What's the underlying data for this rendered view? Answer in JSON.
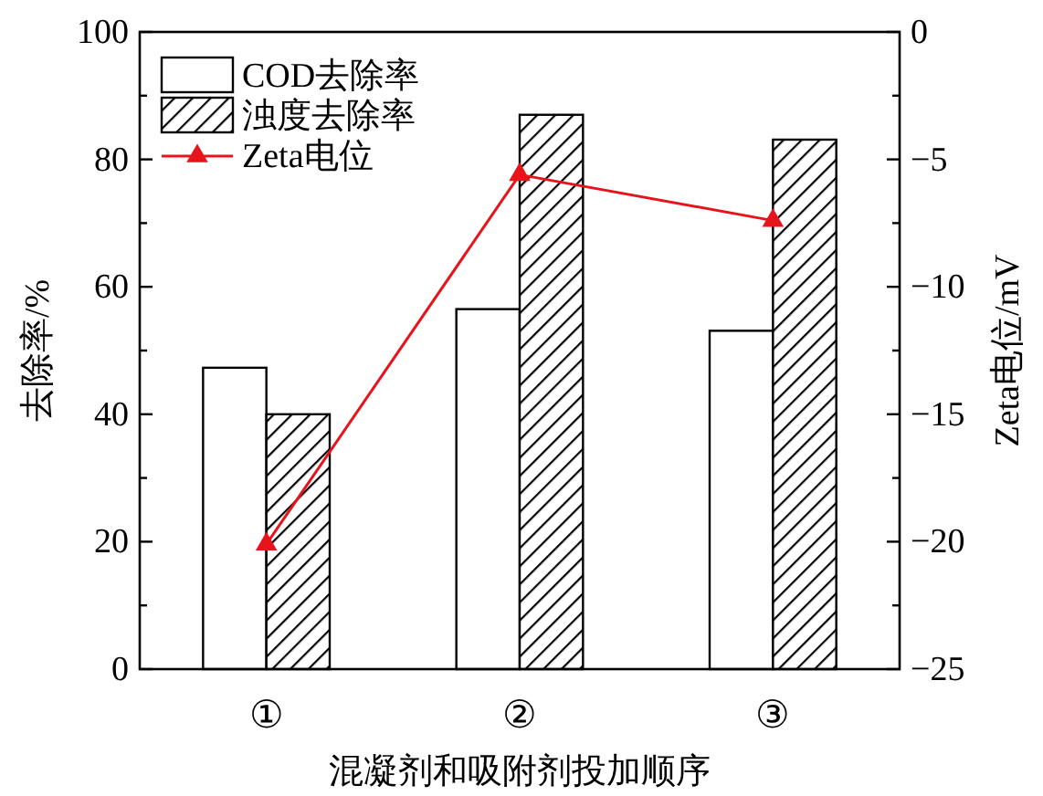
{
  "chart_data": {
    "type": "bar",
    "xlabel": "混凝剂和吸附剂投加顺序",
    "ylabel": "去除率/%",
    "y2label": "Zeta电位/mV",
    "categories": [
      "①",
      "②",
      "③"
    ],
    "series": [
      {
        "name": "COD去除率",
        "color": "#ffffff",
        "values": [
          47.3,
          56.5,
          53.1
        ]
      },
      {
        "name": "浊度去除率",
        "color": "#000000",
        "values": [
          40,
          87,
          83.1
        ]
      },
      {
        "name": "Zeta电位",
        "type": "line",
        "axis": "y2",
        "color": "#e8141c",
        "marker": "triangle",
        "values": [
          -20.1,
          -5.6,
          -7.4
        ]
      }
    ],
    "ylim": [
      0,
      100
    ],
    "yticks": [
      0,
      {
        "value": 10,
        "label": null
      },
      20,
      {
        "value": 30,
        "label": null
      },
      40,
      {
        "value": 50,
        "label": null
      },
      60,
      {
        "value": 70,
        "label": null
      },
      80,
      {
        "value": 90,
        "label": null
      },
      100
    ],
    "y2lim": [
      -25,
      0
    ],
    "y2ticks": [
      {
        "value": -25,
        "label": "−25"
      },
      {
        "value": -22.5,
        "label": null
      },
      {
        "value": -20,
        "label": "−20"
      },
      {
        "value": -17.5,
        "label": null
      },
      {
        "value": -15,
        "label": "−15"
      },
      {
        "value": -12.5,
        "label": null
      },
      {
        "value": -10,
        "label": "−10"
      },
      {
        "value": -7.5,
        "label": null
      },
      {
        "value": -5,
        "label": "−5"
      },
      {
        "value": -2.5,
        "label": null
      },
      0
    ],
    "legend": "top left",
    "grid": false
  }
}
